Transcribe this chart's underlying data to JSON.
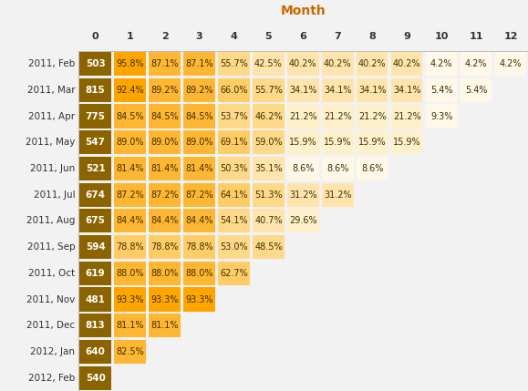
{
  "title": "Month",
  "col_labels": [
    "0",
    "1",
    "2",
    "3",
    "4",
    "5",
    "6",
    "7",
    "8",
    "9",
    "10",
    "11",
    "12"
  ],
  "row_labels": [
    "2011, Feb",
    "2011, Mar",
    "2011, Apr",
    "2011, May",
    "2011, Jun",
    "2011, Jul",
    "2011, Aug",
    "2011, Sep",
    "2011, Oct",
    "2011, Nov",
    "2011, Dec",
    "2012, Jan",
    "2012, Feb"
  ],
  "data": [
    [
      503,
      "95.8%",
      "87.1%",
      "87.1%",
      "55.7%",
      "42.5%",
      "40.2%",
      "40.2%",
      "40.2%",
      "40.2%",
      "4.2%",
      "4.2%",
      "4.2%"
    ],
    [
      815,
      "92.4%",
      "89.2%",
      "89.2%",
      "66.0%",
      "55.7%",
      "34.1%",
      "34.1%",
      "34.1%",
      "34.1%",
      "5.4%",
      "5.4%",
      null
    ],
    [
      775,
      "84.5%",
      "84.5%",
      "84.5%",
      "53.7%",
      "46.2%",
      "21.2%",
      "21.2%",
      "21.2%",
      "21.2%",
      "9.3%",
      null,
      null
    ],
    [
      547,
      "89.0%",
      "89.0%",
      "89.0%",
      "69.1%",
      "59.0%",
      "15.9%",
      "15.9%",
      "15.9%",
      "15.9%",
      null,
      null,
      null
    ],
    [
      521,
      "81.4%",
      "81.4%",
      "81.4%",
      "50.3%",
      "35.1%",
      "8.6%",
      "8.6%",
      "8.6%",
      null,
      null,
      null,
      null
    ],
    [
      674,
      "87.2%",
      "87.2%",
      "87.2%",
      "64.1%",
      "51.3%",
      "31.2%",
      "31.2%",
      null,
      null,
      null,
      null,
      null
    ],
    [
      675,
      "84.4%",
      "84.4%",
      "84.4%",
      "54.1%",
      "40.7%",
      "29.6%",
      null,
      null,
      null,
      null,
      null,
      null
    ],
    [
      594,
      "78.8%",
      "78.8%",
      "78.8%",
      "53.0%",
      "48.5%",
      null,
      null,
      null,
      null,
      null,
      null,
      null
    ],
    [
      619,
      "88.0%",
      "88.0%",
      "88.0%",
      "62.7%",
      null,
      null,
      null,
      null,
      null,
      null,
      null,
      null
    ],
    [
      481,
      "93.3%",
      "93.3%",
      "93.3%",
      null,
      null,
      null,
      null,
      null,
      null,
      null,
      null,
      null
    ],
    [
      813,
      "81.1%",
      "81.1%",
      null,
      null,
      null,
      null,
      null,
      null,
      null,
      null,
      null,
      null
    ],
    [
      640,
      "82.5%",
      null,
      null,
      null,
      null,
      null,
      null,
      null,
      null,
      null,
      null,
      null
    ],
    [
      540,
      null,
      null,
      null,
      null,
      null,
      null,
      null,
      null,
      null,
      null,
      null,
      null
    ]
  ],
  "color_col0": "#8B6400",
  "color_high": "#FFA500",
  "color_mid_high": "#FFB833",
  "color_mid": "#FFCC66",
  "color_low": "#FFE0A0",
  "color_vlow": "#FFF0CC",
  "color_tiny": "#FFF8E0",
  "background": "#F2F2F2",
  "cell_bg": "#FFFFFF",
  "text_col0": "#FFFFFF",
  "text_other": "#3D3000",
  "title_color": "#CC6600",
  "outer_border": "#AAAAAA"
}
